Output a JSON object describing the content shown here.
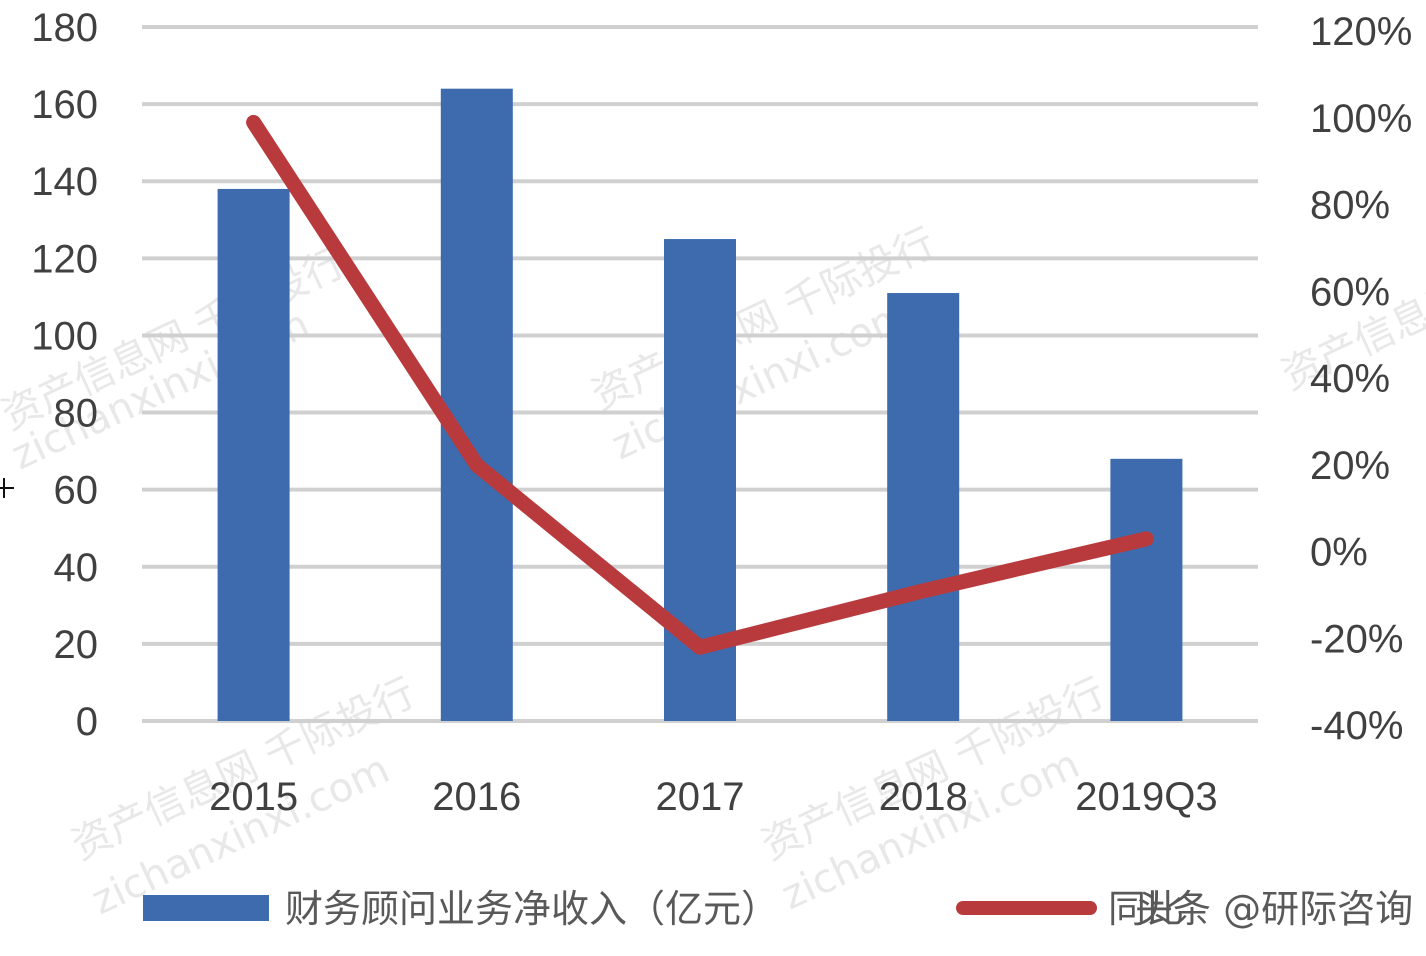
{
  "chart_data": {
    "type": "bar+line",
    "title": "",
    "categories": [
      "2015",
      "2016",
      "2017",
      "2018",
      "2019Q3"
    ],
    "series": [
      {
        "name": "财务顾问业务净收入（亿元）",
        "type": "bar",
        "axis": "left",
        "color": "#3d6bae",
        "values": [
          138,
          164,
          125,
          111,
          68
        ]
      },
      {
        "name": "同比",
        "type": "line",
        "axis": "right",
        "color": "#b83a3d",
        "values": [
          0.98,
          0.19,
          -0.23,
          -0.1,
          0.02
        ]
      }
    ],
    "left_axis": {
      "ylim": [
        0,
        180
      ],
      "ticks": [
        "180",
        "160",
        "140",
        "120",
        "100",
        "80",
        "60",
        "40",
        "20",
        "0"
      ]
    },
    "right_axis": {
      "ylim": [
        -0.4,
        1.2
      ],
      "ticks": [
        "120%",
        "100%",
        "80%",
        "60%",
        "40%",
        "20%",
        "0%",
        "-20%",
        "-40%"
      ]
    },
    "xlabel": "",
    "ylabel": "",
    "grid": true,
    "legend_position": "bottom"
  },
  "legend": {
    "bar_label": "财务顾问业务净收入（亿元）",
    "line_label": "同比",
    "overlay_text": "头条 @研际咨询"
  },
  "watermarks": [
    "资产信息网 千际投行",
    "zichanxinxi.com"
  ]
}
